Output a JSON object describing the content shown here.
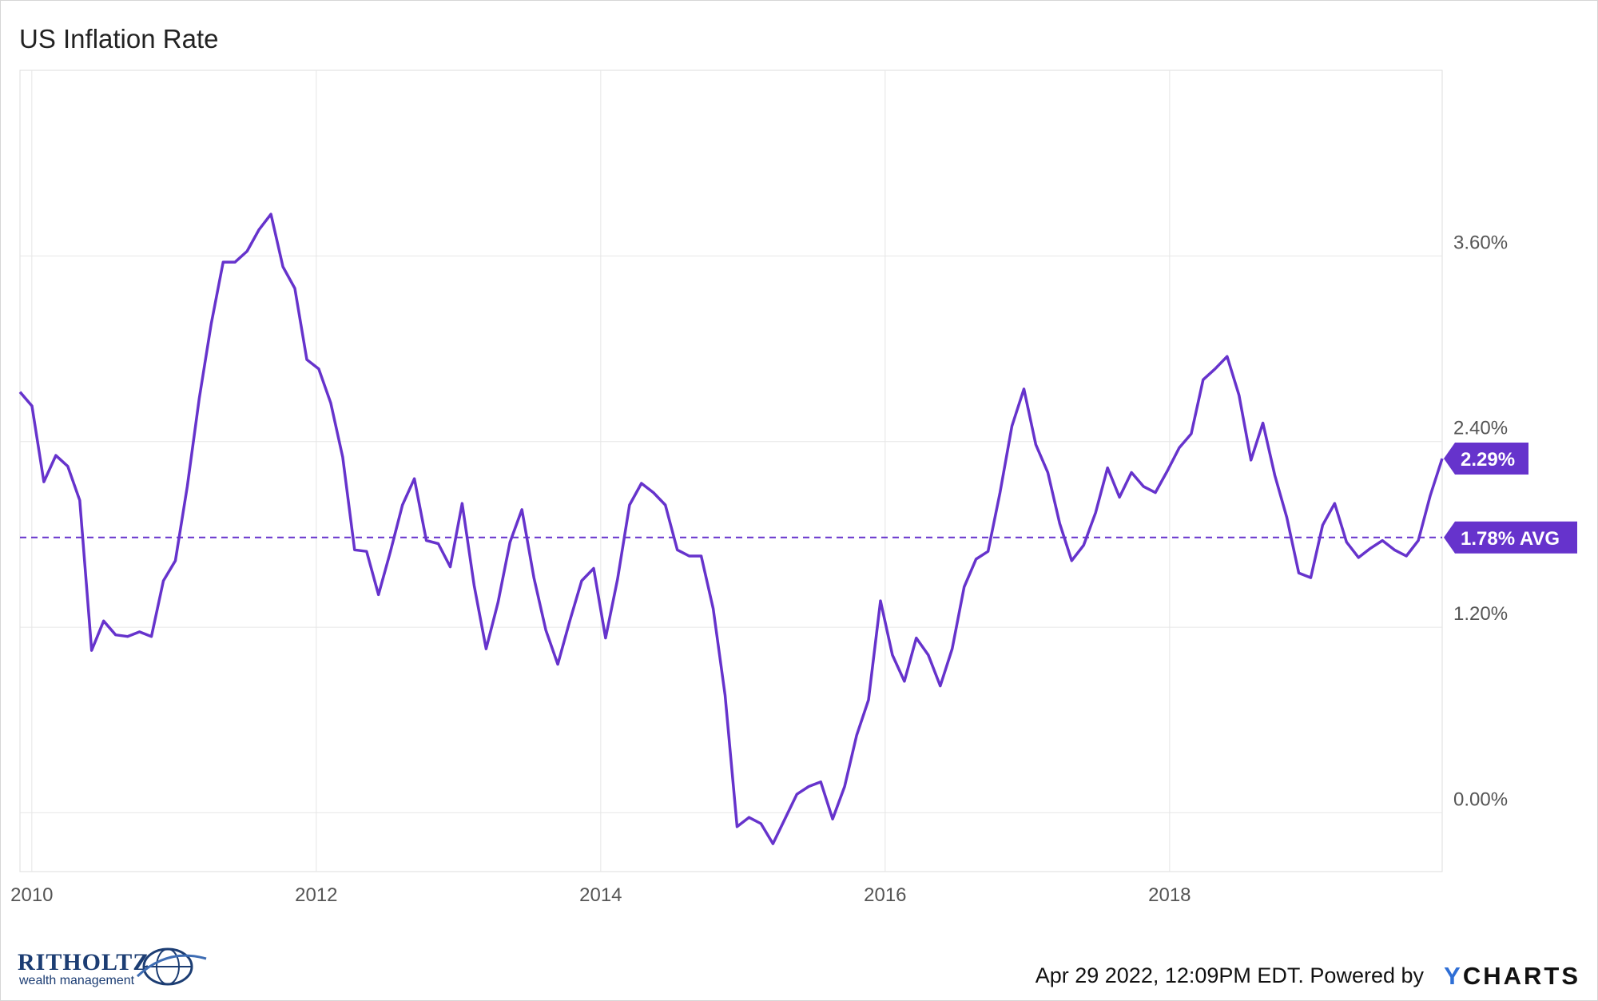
{
  "title": "US Inflation Rate",
  "footer": {
    "timestamp": "Apr 29 2022, 12:09PM EDT. Powered by",
    "brand_y": "Y",
    "brand_rest": "CHARTS"
  },
  "logo": {
    "name": "RITHOLTZ",
    "subtitle": "wealth management"
  },
  "colors": {
    "series": "#6633cc",
    "grid": "#e6e6e6",
    "axis_text": "#555555",
    "label_bg": "#6633cc",
    "label_text": "#ffffff"
  },
  "chart_data": {
    "type": "line",
    "title": "US Inflation Rate",
    "x_start": "2009-12",
    "x_end": "2019-12",
    "xticks": [
      "2010",
      "2012",
      "2014",
      "2016",
      "2018"
    ],
    "yticks": [
      "0.00%",
      "1.20%",
      "2.40%",
      "3.60%"
    ],
    "ylim": [
      -0.38,
      4.8
    ],
    "grid": true,
    "series": [
      {
        "values": [
          2.72,
          2.63,
          2.14,
          2.31,
          2.24,
          2.02,
          1.05,
          1.24,
          1.15,
          1.14,
          1.17,
          1.14,
          1.5,
          1.63,
          2.11,
          2.68,
          3.16,
          3.56,
          3.56,
          3.63,
          3.77,
          3.87,
          3.53,
          3.39,
          2.93,
          2.87,
          2.65,
          2.3,
          1.7,
          1.69,
          1.41,
          1.69,
          1.99,
          2.16,
          1.76,
          1.74,
          1.59,
          2.0,
          1.47,
          1.06,
          1.36,
          1.75,
          1.96,
          1.52,
          1.18,
          0.96,
          1.24,
          1.5,
          1.58,
          1.13,
          1.51,
          1.99,
          2.13,
          2.07,
          1.99,
          1.7,
          1.66,
          1.66,
          1.32,
          0.76,
          -0.09,
          -0.03,
          -0.07,
          -0.2,
          -0.04,
          0.12,
          0.17,
          0.2,
          -0.04,
          0.17,
          0.5,
          0.73,
          1.37,
          1.02,
          0.85,
          1.13,
          1.02,
          0.82,
          1.06,
          1.46,
          1.64,
          1.69,
          2.07,
          2.5,
          2.74,
          2.38,
          2.2,
          1.87,
          1.63,
          1.73,
          1.94,
          2.23,
          2.04,
          2.2,
          2.11,
          2.07,
          2.21,
          2.36,
          2.45,
          2.8,
          2.87,
          2.95,
          2.7,
          2.28,
          2.52,
          2.18,
          1.91,
          1.55,
          1.52,
          1.86,
          2.0,
          1.75,
          1.65,
          1.71,
          1.76,
          1.7,
          1.66,
          1.76,
          2.05,
          2.29
        ]
      }
    ],
    "average": {
      "value": 1.78,
      "label": "1.78% AVG"
    },
    "last_value_label": "2.29%"
  }
}
